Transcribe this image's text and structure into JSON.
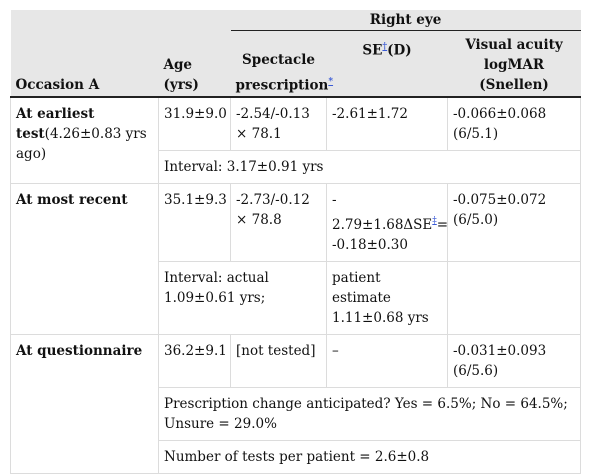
{
  "header": {
    "group_title": "Right eye",
    "col_occasion": "Occasion A",
    "col_age": "Age (yrs)",
    "col_spectacle_line1": "Spectacle",
    "col_spectacle_line2": "prescription",
    "col_spectacle_mark": "*",
    "col_se_pre": "SE",
    "col_se_mark": "†",
    "col_se_post": "(D)",
    "col_va_line1": "Visual acuity",
    "col_va_line2": "logMAR (Snellen)"
  },
  "rows": {
    "earliest": {
      "label_bold_1": "At earliest",
      "label_bold_2": "test",
      "label_note": "(4.26±0.83 yrs ago)",
      "age": "31.9±9.0",
      "spectacle": "-2.54/-0.13 × 78.1",
      "se": "-2.61±1.72",
      "va_1": "-0.066±0.068",
      "va_2": "(6/5.1)",
      "interval": "Interval: 3.17±0.91 yrs"
    },
    "recent": {
      "label": "At most recent",
      "age": "35.1±9.3",
      "spectacle": "-2.73/-0.12 × 78.8",
      "se_1": "-",
      "se_2": "2.79±1.68ΔSE",
      "se_mark": "‡",
      "se_3": "=",
      "se_4": "-0.18±0.30",
      "va_1": "-0.075±0.072",
      "va_2": "(6/5.0)",
      "interval_1": "Interval: actual",
      "interval_2": "1.09±0.61 yrs;",
      "patient_1": "patient estimate",
      "patient_2": "1.11±0.68 yrs"
    },
    "questionnaire": {
      "label": "At questionnaire",
      "age": "36.2±9.1",
      "spectacle": "[not tested]",
      "se": "–",
      "va_1": "-0.031±0.093",
      "va_2": "(6/5.6)",
      "anticipated": "Prescription change anticipated? Yes = 6.5%; No = 64.5%; Unsure = 29.0%",
      "tests": "Number of tests per patient = 2.6±0.8"
    }
  }
}
